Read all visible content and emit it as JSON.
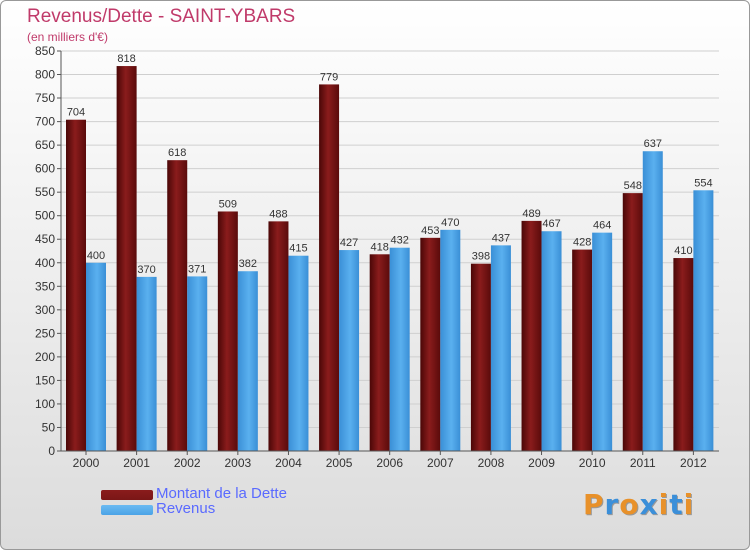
{
  "header": {
    "title": "Revenus/Dette - SAINT-YBARS",
    "subtitle": "(en milliers d'€)"
  },
  "legend": {
    "items": [
      {
        "label": "Montant de la Dette",
        "color": "#7a1616"
      },
      {
        "label": "Revenus",
        "color": "#4aa3e6"
      }
    ]
  },
  "logo": {
    "text": "Proxiti",
    "colors": [
      "#e8912a",
      "#3b8fd9",
      "#e8912a",
      "#3b8fd9",
      "#e8912a",
      "#3b8fd9",
      "#e8912a"
    ]
  },
  "chart_data": {
    "type": "bar",
    "categories": [
      "2000",
      "2001",
      "2002",
      "2003",
      "2004",
      "2005",
      "2006",
      "2007",
      "2008",
      "2009",
      "2010",
      "2011",
      "2012"
    ],
    "series": [
      {
        "name": "Montant de la Dette",
        "color": "#7a1616",
        "values": [
          704,
          818,
          618,
          509,
          488,
          779,
          418,
          453,
          398,
          489,
          428,
          548,
          410
        ]
      },
      {
        "name": "Revenus",
        "color": "#4aa3e6",
        "values": [
          400,
          370,
          371,
          382,
          415,
          427,
          432,
          470,
          437,
          467,
          464,
          637,
          554
        ]
      }
    ],
    "ylim": [
      0,
      850
    ],
    "yticks": [
      0,
      50,
      100,
      150,
      200,
      250,
      300,
      350,
      400,
      450,
      500,
      550,
      600,
      650,
      700,
      750,
      800,
      850
    ],
    "grid": true,
    "legend_position": "bottom-left"
  }
}
